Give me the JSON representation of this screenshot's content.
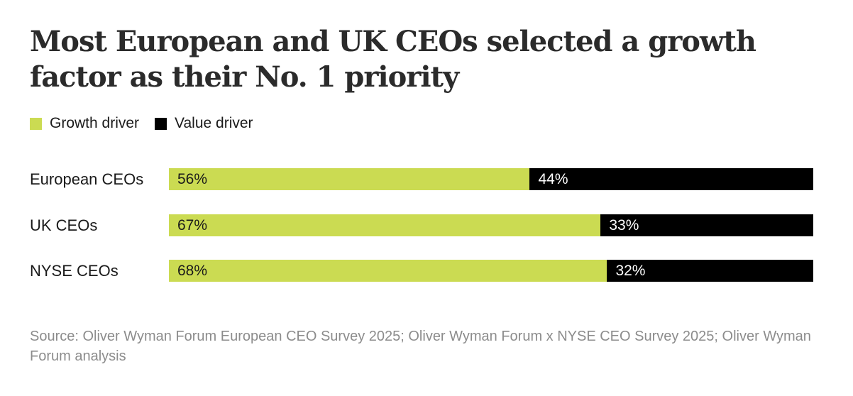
{
  "chart_data": {
    "type": "bar",
    "orientation": "horizontal",
    "stacked": true,
    "title": "Most European and UK CEOs selected a growth factor as their No. 1 priority",
    "categories": [
      "European CEOs",
      "UK CEOs",
      "NYSE CEOs"
    ],
    "series": [
      {
        "name": "Growth driver",
        "values": [
          56,
          67,
          68
        ],
        "labels": [
          "56%",
          "67%",
          "68%"
        ],
        "color": "#cbdb52"
      },
      {
        "name": "Value driver",
        "values": [
          44,
          33,
          32
        ],
        "labels": [
          "44%",
          "33%",
          "32%"
        ],
        "color": "#000000"
      }
    ],
    "xlim": [
      0,
      100
    ],
    "legend": "top-left",
    "grid": false,
    "source": "Source: Oliver Wyman Forum European CEO Survey 2025; Oliver Wyman Forum x NYSE CEO Survey 2025; Oliver Wyman Forum analysis"
  }
}
